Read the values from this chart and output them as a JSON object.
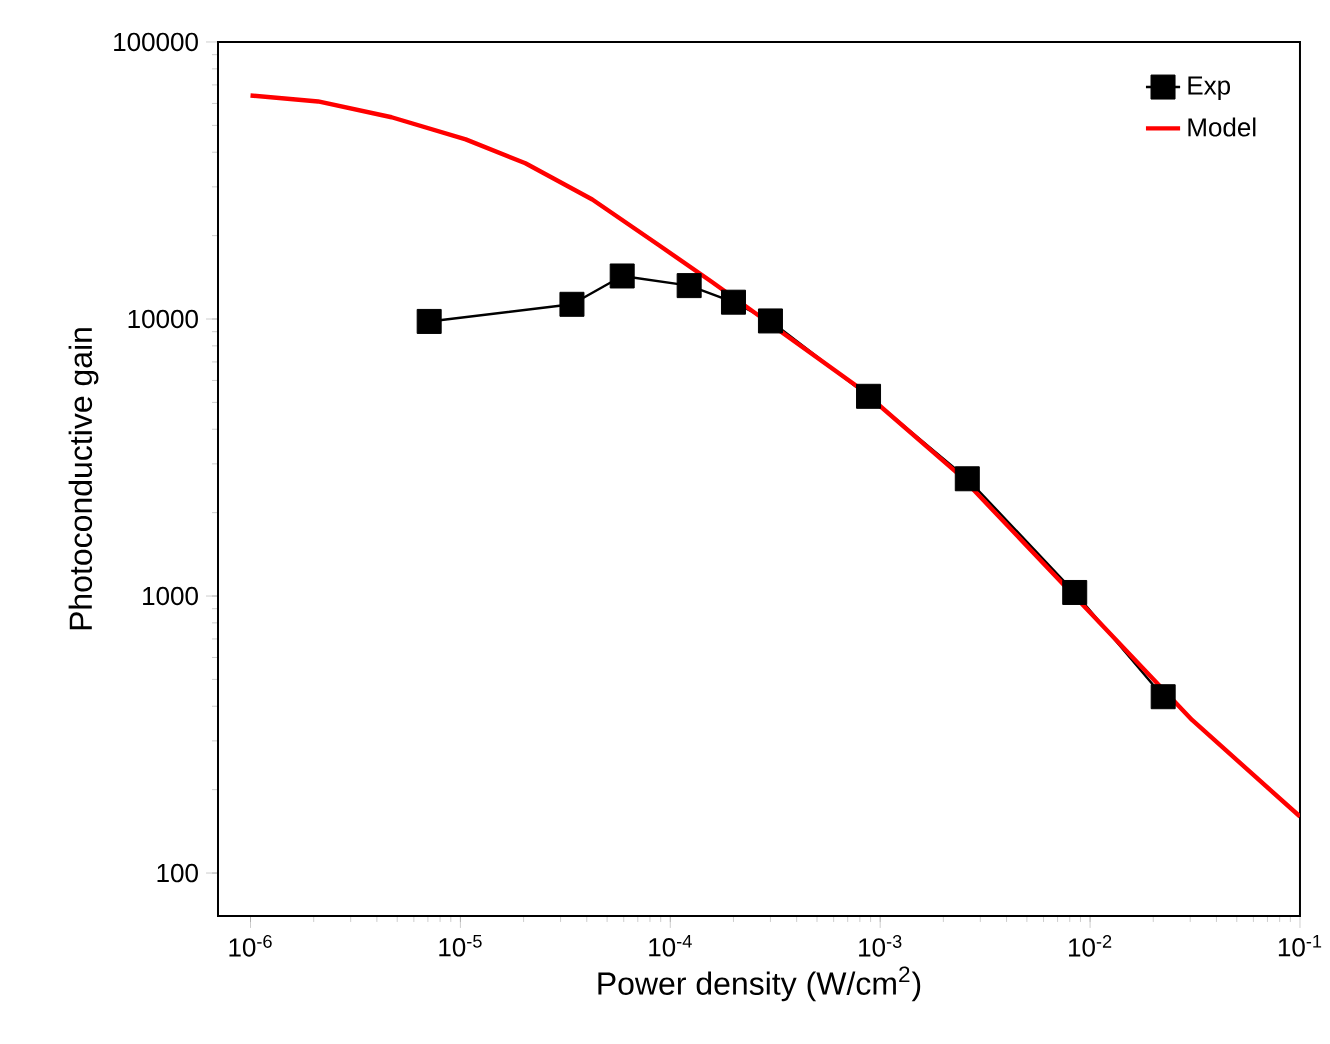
{
  "chart_data": {
    "type": "line",
    "xlabel": "Power density (W/cm$^{2}$)",
    "ylabel": "Photoconductive gain",
    "log": "xy",
    "legend": "top right",
    "grid": false,
    "xlim": [
      7e-07,
      0.1
    ],
    "ylim": [
      70,
      100000
    ],
    "xticks": [
      {
        "value": 1e-06,
        "label": "10$^{-6}$"
      },
      {
        "value": 1e-05,
        "label": "10$^{-5}$"
      },
      {
        "value": 0.0001,
        "label": "10$^{-4}$"
      },
      {
        "value": 0.001,
        "label": "10$^{-3}$"
      },
      {
        "value": 0.01,
        "label": "10$^{-2}$"
      },
      {
        "value": 0.1,
        "label": "10$^{-1}$"
      }
    ],
    "yticks": [
      100,
      1000,
      10000,
      100000
    ],
    "series": [
      {
        "name": "Exp",
        "color": "#000000",
        "marker": "square",
        "x": [
          7.1e-06,
          3.4e-05,
          5.9e-05,
          0.000123,
          0.0002,
          0.0003,
          0.00088,
          0.0026,
          0.00845,
          0.0223
        ],
        "values": [
          9800,
          11300,
          14300,
          13200,
          11500,
          9840,
          5260,
          2650,
          1030,
          433
        ]
      },
      {
        "name": "Model",
        "color": "#ff0000",
        "marker": "none",
        "x": [
          1e-06,
          2.1e-06,
          4.7e-06,
          1.06e-05,
          2.04e-05,
          4.25e-05,
          8.8e-05,
          0.000158,
          0.00079,
          0.00237,
          0.0088,
          0.0306,
          0.1
        ],
        "values": [
          64100,
          61000,
          53500,
          44500,
          36500,
          27000,
          18500,
          13600,
          5660,
          2750,
          965,
          357,
          160
        ]
      }
    ]
  }
}
